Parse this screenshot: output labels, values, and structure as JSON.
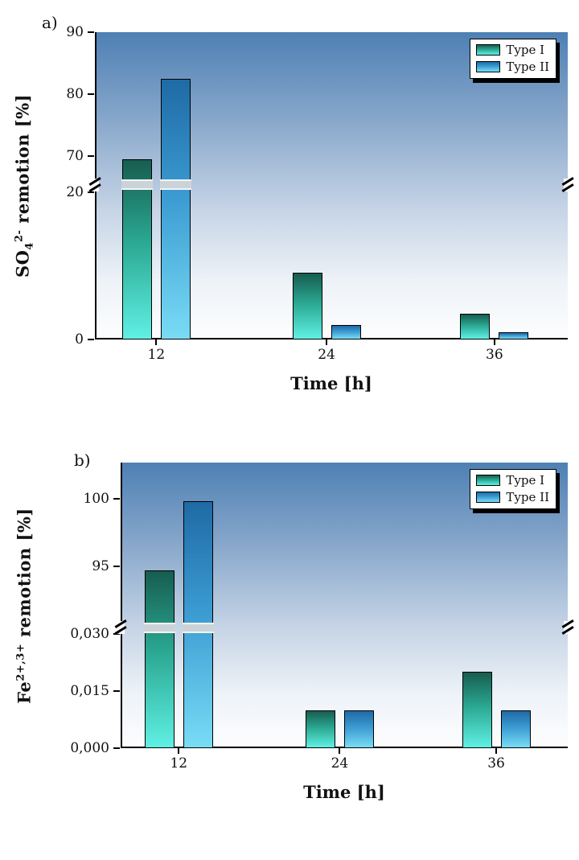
{
  "page": {
    "background": "#ffffff"
  },
  "chart_data": [
    {
      "type": "bar",
      "panel_label": "a)",
      "xlabel": "Time [h]",
      "ylabel": {
        "base": "SO",
        "sub": "4",
        "sup": "2-",
        "rest": " remotion [%]"
      },
      "categories": [
        "12",
        "24",
        "36"
      ],
      "series": [
        {
          "name": "Type I",
          "color_top": "#175d50",
          "color_mid": "#2aa791",
          "color_bottom": "#5ff0e4",
          "values": [
            69.5,
            9,
            3.5
          ]
        },
        {
          "name": "Type II",
          "color_top": "#1f6aa5",
          "color_mid": "#3b9bd2",
          "color_bottom": "#79dcf5",
          "values": [
            82.5,
            2,
            1
          ]
        }
      ],
      "yticks_upper": [
        {
          "value": 90,
          "label": "90"
        },
        {
          "value": 80,
          "label": "80"
        },
        {
          "value": 70,
          "label": "70"
        }
      ],
      "yticks_lower": [
        {
          "value": 20,
          "label": "20"
        },
        {
          "value": 0,
          "label": "0"
        }
      ],
      "axis": {
        "broken": true,
        "threshold": 45,
        "upper": {
          "v1": 70,
          "f1": 0.403,
          "v2": 90,
          "f2": 0.0
        },
        "lower": {
          "v1": 0,
          "f1": 1.0,
          "v2": 20,
          "f2": 0.52
        }
      },
      "legend": {
        "position": "top-right"
      },
      "grid": false
    },
    {
      "type": "bar",
      "panel_label": "b)",
      "xlabel": "Time [h]",
      "ylabel": {
        "base": "Fe",
        "sub": "",
        "sup": "2+,3+",
        "rest": " remotion [%]"
      },
      "categories": [
        "12",
        "24",
        "36"
      ],
      "series": [
        {
          "name": "Type I",
          "color_top": "#175d50",
          "color_mid": "#2aa791",
          "color_bottom": "#5ff0e4",
          "values": [
            94.7,
            0.01,
            0.02
          ]
        },
        {
          "name": "Type II",
          "color_top": "#1f6aa5",
          "color_mid": "#3b9bd2",
          "color_bottom": "#79dcf5",
          "values": [
            99.8,
            0.01,
            0.01
          ]
        }
      ],
      "yticks_upper": [
        {
          "value": 100,
          "label": "100"
        },
        {
          "value": 95,
          "label": "95"
        }
      ],
      "yticks_lower": [
        {
          "value": 0.03,
          "label": "0,030"
        },
        {
          "value": 0.015,
          "label": "0,015"
        },
        {
          "value": 0,
          "label": "0,000"
        }
      ],
      "axis": {
        "broken": true,
        "threshold": 10,
        "upper": {
          "v1": 95,
          "f1": 0.363,
          "v2": 100,
          "f2": 0.127
        },
        "lower": {
          "v1": 0,
          "f1": 1.0,
          "v2": 0.03,
          "f2": 0.6
        }
      },
      "legend": {
        "position": "top-right"
      },
      "grid": false
    }
  ]
}
